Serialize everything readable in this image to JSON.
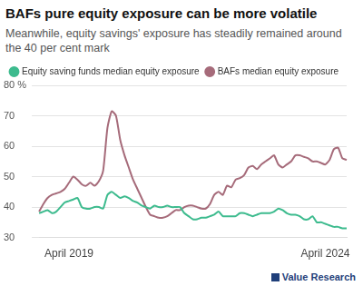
{
  "chart_data": {
    "type": "line",
    "title": "BAFs pure equity exposure can be more volatile",
    "subtitle": "Meanwhile, equity savings' exposure has steadily remained around the 40 per cent mark",
    "source": "Value Research",
    "categories": [
      null,
      null,
      null,
      null,
      null,
      null,
      null,
      "April 2019",
      null,
      null,
      null,
      null,
      null,
      null,
      null,
      null,
      null,
      null,
      null,
      null,
      null,
      null,
      null,
      null,
      null,
      null,
      null,
      null,
      null,
      null,
      null,
      null,
      null,
      null,
      null,
      null,
      null,
      null,
      null,
      null,
      null,
      null,
      null,
      null,
      null,
      null,
      null,
      null,
      null,
      null,
      null,
      null,
      null,
      null,
      null,
      null,
      null,
      null,
      null,
      null,
      null,
      null,
      null,
      null,
      null,
      null,
      null,
      "April 2024",
      null,
      null,
      null,
      null,
      null
    ],
    "series": [
      {
        "name": "Equity saving funds median equity exposure",
        "color": "#3dbb8e",
        "values": [
          38,
          38.5,
          39,
          38,
          38.5,
          40,
          41.5,
          42,
          42.5,
          43,
          40,
          39.5,
          39.5,
          40,
          40,
          39.5,
          44,
          45,
          44,
          43,
          43.5,
          43,
          42,
          41.5,
          40.5,
          40,
          39.5,
          40.5,
          40,
          40,
          40.5,
          40,
          40,
          40,
          38,
          37,
          36,
          36,
          36.5,
          36.5,
          37,
          37.5,
          38.5,
          37,
          37,
          37,
          37,
          38,
          38,
          37.5,
          37,
          37.5,
          38,
          38,
          38,
          38.5,
          39.5,
          39,
          38,
          37.5,
          37.5,
          37,
          36,
          36,
          37,
          35,
          35,
          34.5,
          34,
          33.5,
          33.5,
          33,
          33
        ]
      },
      {
        "name": "BAFs median equity exposure",
        "color": "#a66b7a",
        "values": [
          38.5,
          41,
          43,
          44,
          44.5,
          45,
          46,
          48,
          50,
          49,
          47.5,
          47,
          48,
          47,
          48.5,
          52,
          66,
          71.5,
          70,
          62,
          57,
          53,
          49,
          46,
          43,
          40,
          37.5,
          37,
          36.5,
          36.5,
          37,
          38,
          39,
          39,
          40,
          40.5,
          40.5,
          40,
          39.5,
          39.5,
          41,
          44,
          45,
          44,
          47,
          46.5,
          49,
          49.5,
          50.5,
          53,
          53.5,
          52.5,
          54,
          55,
          56,
          57,
          54,
          53,
          54,
          55,
          57,
          57,
          56.5,
          56,
          55,
          55,
          54.5,
          54,
          55.5,
          59,
          59.5,
          56,
          55.5
        ]
      }
    ],
    "ylim": [
      30,
      80
    ],
    "yticks": [
      30,
      40,
      50,
      60,
      70,
      {
        "value": 80,
        "label": "80 %"
      }
    ],
    "grid": true,
    "legend": "top-left"
  }
}
